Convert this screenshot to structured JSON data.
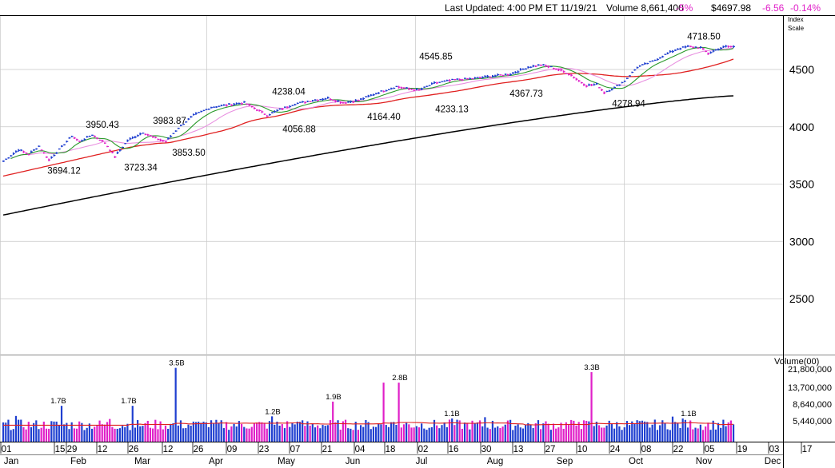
{
  "header": {
    "last_updated": "Last Updated: 4:00 PM ET 11/19/21",
    "volume": "Volume 8,661,400",
    "volume_change": "-5%",
    "price": "$4697.98",
    "change": "-6.56",
    "change_pct": "-0.14%",
    "scale_label_1": "Index",
    "scale_label_2": "Scale"
  },
  "colors": {
    "up_bar": "#1f3fd0",
    "down_bar": "#e020c8",
    "ma_black": "#000000",
    "ma_red": "#e02020",
    "ma_green": "#2a9a2a",
    "ma_pink": "#e890e0",
    "volume_avg": "#e02020",
    "grid": "#c8c8c8",
    "negative_text": "#e020c8"
  },
  "chart_data": {
    "type": "line",
    "y_ticks": [
      2500,
      3000,
      3500,
      4000,
      4500
    ],
    "ylim": [
      2000,
      4900
    ],
    "x_month_labels": [
      "Jan",
      "Feb",
      "Mar",
      "Apr",
      "May",
      "Jun",
      "Jul",
      "Aug",
      "Sep",
      "Oct",
      "Nov",
      "Dec"
    ],
    "x_day_labels": [
      "01",
      "15",
      "29",
      "12",
      "26",
      "12",
      "26",
      "09",
      "23",
      "07",
      "21",
      "04",
      "18",
      "02",
      "16",
      "30",
      "13",
      "27",
      "10",
      "24",
      "08",
      "22",
      "05",
      "19",
      "03",
      "17"
    ],
    "price_annotations": [
      {
        "text": "3950.43",
        "value": 3950.43,
        "pos": "above"
      },
      {
        "text": "3694.12",
        "value": 3694.12,
        "pos": "below"
      },
      {
        "text": "3723.34",
        "value": 3723.34,
        "pos": "below"
      },
      {
        "text": "3983.87",
        "value": 3983.87,
        "pos": "above"
      },
      {
        "text": "3853.50",
        "value": 3853.5,
        "pos": "below"
      },
      {
        "text": "4238.04",
        "value": 4238.04,
        "pos": "above"
      },
      {
        "text": "4056.88",
        "value": 4056.88,
        "pos": "below"
      },
      {
        "text": "4164.40",
        "value": 4164.4,
        "pos": "below"
      },
      {
        "text": "4233.13",
        "value": 4233.13,
        "pos": "below"
      },
      {
        "text": "4545.85",
        "value": 4545.85,
        "pos": "above"
      },
      {
        "text": "4367.73",
        "value": 4367.73,
        "pos": "below"
      },
      {
        "text": "4278.94",
        "value": 4278.94,
        "pos": "below"
      },
      {
        "text": "4718.50",
        "value": 4718.5,
        "pos": "above"
      }
    ],
    "price_anchors": [
      [
        0,
        3700
      ],
      [
        6,
        3800
      ],
      [
        10,
        3760
      ],
      [
        14,
        3830
      ],
      [
        18,
        3710
      ],
      [
        22,
        3800
      ],
      [
        27,
        3920
      ],
      [
        30,
        3870
      ],
      [
        35,
        3930
      ],
      [
        40,
        3860
      ],
      [
        44,
        3740
      ],
      [
        49,
        3880
      ],
      [
        55,
        3950
      ],
      [
        60,
        3900
      ],
      [
        64,
        3870
      ],
      [
        69,
        3990
      ],
      [
        75,
        4100
      ],
      [
        82,
        4170
      ],
      [
        88,
        4190
      ],
      [
        95,
        4210
      ],
      [
        100,
        4150
      ],
      [
        104,
        4100
      ],
      [
        109,
        4150
      ],
      [
        115,
        4200
      ],
      [
        122,
        4230
      ],
      [
        128,
        4250
      ],
      [
        134,
        4210
      ],
      [
        140,
        4230
      ],
      [
        148,
        4300
      ],
      [
        155,
        4350
      ],
      [
        160,
        4330
      ],
      [
        164,
        4320
      ],
      [
        170,
        4380
      ],
      [
        178,
        4410
      ],
      [
        185,
        4420
      ],
      [
        192,
        4440
      ],
      [
        200,
        4460
      ],
      [
        207,
        4520
      ],
      [
        212,
        4540
      ],
      [
        216,
        4520
      ],
      [
        220,
        4490
      ],
      [
        224,
        4450
      ],
      [
        227,
        4400
      ],
      [
        230,
        4360
      ],
      [
        234,
        4370
      ],
      [
        237,
        4300
      ],
      [
        241,
        4340
      ],
      [
        245,
        4400
      ],
      [
        250,
        4520
      ],
      [
        256,
        4570
      ],
      [
        262,
        4640
      ],
      [
        266,
        4680
      ],
      [
        270,
        4700
      ],
      [
        275,
        4690
      ],
      [
        278,
        4640
      ],
      [
        282,
        4680
      ],
      [
        285,
        4700
      ],
      [
        288,
        4698
      ]
    ],
    "moving_average_200": {
      "start": 3230,
      "end": 4270
    },
    "volume": {
      "y_ticks": [
        {
          "label": "21,800,000",
          "value": 21800000
        },
        {
          "label": "13,700,000",
          "value": 13700000
        },
        {
          "label": "8,640,000",
          "value": 8640000
        },
        {
          "label": "5,440,000",
          "value": 5440000
        }
      ],
      "axis_title": "Volume(00)",
      "annotations": [
        {
          "text": "1.7B",
          "value": 1.7
        },
        {
          "text": "1.7B",
          "value": 1.7
        },
        {
          "text": "3.5B",
          "value": 3.5
        },
        {
          "text": "1.2B",
          "value": 1.2
        },
        {
          "text": "1.9B",
          "value": 1.9
        },
        {
          "text": "2.8B",
          "value": 2.8
        },
        {
          "text": "1.1B",
          "value": 1.1
        },
        {
          "text": "3.3B",
          "value": 3.3
        },
        {
          "text": "1.1B",
          "value": 1.1
        }
      ],
      "volume_spikes": [
        {
          "index": 23,
          "value": 1.7
        },
        {
          "index": 51,
          "value": 1.7
        },
        {
          "index": 68,
          "value": 3.5
        },
        {
          "index": 106,
          "value": 1.2
        },
        {
          "index": 130,
          "value": 1.9
        },
        {
          "index": 150,
          "value": 2.8
        },
        {
          "index": 156,
          "value": 2.8
        },
        {
          "index": 177,
          "value": 1.1
        },
        {
          "index": 232,
          "value": 3.3
        },
        {
          "index": 268,
          "value": 1.1
        }
      ]
    }
  }
}
